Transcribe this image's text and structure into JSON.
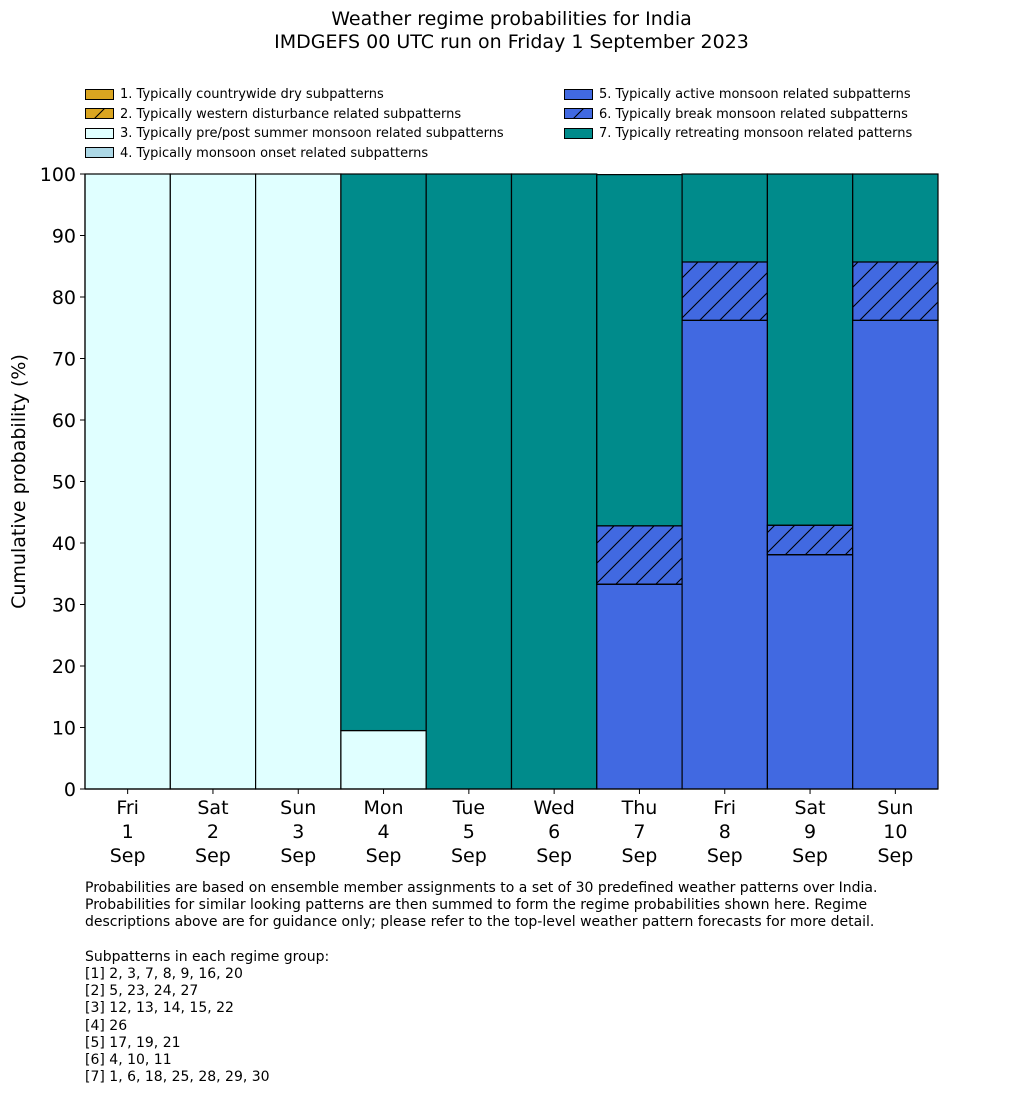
{
  "chart_data": {
    "type": "bar",
    "stacked": true,
    "title": "Weather regime probabilities for India",
    "subtitle": "IMDGEFS 00 UTC run on Friday 1 September 2023",
    "xlabel": "",
    "ylabel": "Cumulative probability (%)",
    "ylim": [
      0,
      100
    ],
    "yticks": [
      0,
      10,
      20,
      30,
      40,
      50,
      60,
      70,
      80,
      90,
      100
    ],
    "grid": false,
    "legend_placement": "top",
    "categories": [
      [
        "Fri",
        "1",
        "Sep"
      ],
      [
        "Sat",
        "2",
        "Sep"
      ],
      [
        "Sun",
        "3",
        "Sep"
      ],
      [
        "Mon",
        "4",
        "Sep"
      ],
      [
        "Tue",
        "5",
        "Sep"
      ],
      [
        "Wed",
        "6",
        "Sep"
      ],
      [
        "Thu",
        "7",
        "Sep"
      ],
      [
        "Fri",
        "8",
        "Sep"
      ],
      [
        "Sat",
        "9",
        "Sep"
      ],
      [
        "Sun",
        "10",
        "Sep"
      ]
    ],
    "series": [
      {
        "name": "1. Typically countrywide dry subpatterns",
        "color": "#daa520",
        "hatch": false,
        "values": [
          0,
          0,
          0,
          0,
          0,
          0,
          0,
          0,
          0,
          0
        ]
      },
      {
        "name": "2. Typically western disturbance related subpatterns",
        "color": "#daa520",
        "hatch": true,
        "values": [
          0,
          0,
          0,
          0,
          0,
          0,
          0,
          0,
          0,
          0
        ]
      },
      {
        "name": "3. Typically pre/post summer monsoon related subpatterns",
        "color": "#e0ffff",
        "hatch": false,
        "values": [
          100,
          100,
          100,
          9.5,
          0,
          0,
          0,
          0,
          0,
          0
        ]
      },
      {
        "name": "4. Typically monsoon onset related subpatterns",
        "color": "#add8e6",
        "hatch": false,
        "values": [
          0,
          0,
          0,
          0,
          0,
          0,
          0,
          0,
          0,
          0
        ]
      },
      {
        "name": "5. Typically active monsoon related subpatterns",
        "color": "#4169e1",
        "hatch": false,
        "values": [
          0,
          0,
          0,
          0,
          0,
          0,
          33.3,
          76.2,
          38.1,
          76.2
        ]
      },
      {
        "name": "6. Typically break monsoon related subpatterns",
        "color": "#4169e1",
        "hatch": true,
        "values": [
          0,
          0,
          0,
          0,
          0,
          0,
          9.5,
          9.5,
          4.8,
          9.5
        ]
      },
      {
        "name": "7. Typically retreating monsoon related patterns",
        "color": "#008b8b",
        "hatch": false,
        "values": [
          0,
          0,
          0,
          90.5,
          100,
          100,
          57.1,
          14.3,
          57.1,
          14.3
        ]
      }
    ]
  },
  "notes": {
    "description": "Probabilities are based on ensemble member assignments to a set of 30 predefined weather patterns over India.\nProbabilities for similar looking patterns are then summed to form the regime probabilities shown here. Regime\ndescriptions above are for guidance only; please refer to the top-level weather pattern forecasts for more detail.",
    "groups_heading": "Subpatterns in each regime group:",
    "groups": [
      "[1] 2, 3, 7, 8, 9, 16, 20",
      "[2] 5, 23, 24, 27",
      "[3] 12, 13, 14, 15, 22",
      "[4] 26",
      "[5] 17, 19, 21",
      "[6] 4, 10, 11",
      "[7] 1, 6, 18, 25, 28, 29, 30"
    ]
  }
}
